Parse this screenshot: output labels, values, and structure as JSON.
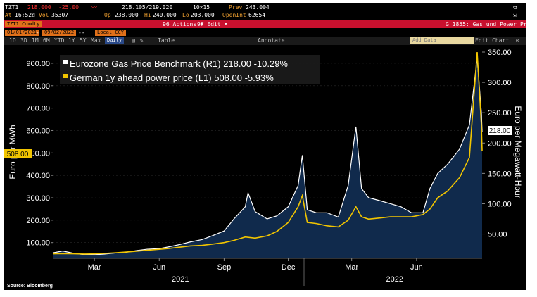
{
  "quote": {
    "ticker": "TZT1",
    "last": "218.000",
    "change": "-25.00",
    "bid_ask": "218.105/219.020",
    "size": "10×15",
    "prev_label": "Prev",
    "prev": "243.004"
  },
  "stats": {
    "time_label": "At",
    "time": "16:52d",
    "vol_label": "Vol",
    "vol": "35307",
    "op_label": "Op",
    "op": "238.000",
    "hi_label": "Hi",
    "hi": "240.000",
    "lo_label": "Lo",
    "lo": "203.000",
    "oi_label": "OpenInt",
    "oi": "62654"
  },
  "toolbar": {
    "security": "TZT1 Comdty",
    "actions": "96 Actions •",
    "edit": "97 Edit •",
    "page_title": "G 1855: Gas und Power Price"
  },
  "range": {
    "start": "01/01/2021",
    "sep": "-",
    "end": "09/02/2022",
    "dash": "--",
    "currency": "Local CCY"
  },
  "periods": [
    "1D",
    "3D",
    "1M",
    "6M",
    "YTD",
    "1Y",
    "5Y",
    "Max"
  ],
  "controls": {
    "frequency": "Daily",
    "table": "Table",
    "annotate": "Annotate",
    "add_data": "Add Data",
    "edit_chart": "Edit Chart"
  },
  "chart_data": {
    "type": "line",
    "legend": [
      "Eurozone Gas Price Benchmark (R1) 218.00 -10.29%",
      "German 1y ahead power price (L1)  508.00 -5.93%"
    ],
    "ylabel_left": "Euro per MWh",
    "ylabel_right": "Euro per Megawatt-Hour",
    "source": "Source: Bloomberg",
    "last_tags": {
      "power": "508.00",
      "gas": "218.00"
    },
    "ylim_left": [
      30,
      950
    ],
    "ylim_right": [
      10,
      350
    ],
    "left_ticks": [
      "100.00",
      "200.00",
      "300.00",
      "400.00",
      "500.00",
      "600.00",
      "700.00",
      "800.00",
      "900.00"
    ],
    "right_ticks": [
      "50.00",
      "100.00",
      "150.00",
      "200.00",
      "250.00",
      "300.00",
      "350.00"
    ],
    "x_tick_labels": [
      "Mar",
      "Jun",
      "Sep",
      "Dec",
      "Mar",
      "Jun"
    ],
    "year_labels": [
      "2021",
      "2022"
    ],
    "series": [
      {
        "name": "Eurozone Gas Price Benchmark (R1)",
        "axis": "right",
        "color": "#ffffff",
        "fill": "#102a4c",
        "points": [
          [
            "2021-01-01",
            19
          ],
          [
            "2021-01-15",
            22
          ],
          [
            "2021-02-01",
            18
          ],
          [
            "2021-02-15",
            16
          ],
          [
            "2021-03-01",
            16
          ],
          [
            "2021-03-15",
            17
          ],
          [
            "2021-04-01",
            19
          ],
          [
            "2021-04-15",
            20
          ],
          [
            "2021-05-01",
            23
          ],
          [
            "2021-05-15",
            25
          ],
          [
            "2021-06-01",
            26
          ],
          [
            "2021-06-15",
            29
          ],
          [
            "2021-07-01",
            33
          ],
          [
            "2021-07-15",
            37
          ],
          [
            "2021-08-01",
            41
          ],
          [
            "2021-08-15",
            47
          ],
          [
            "2021-09-01",
            55
          ],
          [
            "2021-09-15",
            75
          ],
          [
            "2021-10-01",
            95
          ],
          [
            "2021-10-05",
            118
          ],
          [
            "2021-10-15",
            87
          ],
          [
            "2021-11-01",
            75
          ],
          [
            "2021-11-15",
            80
          ],
          [
            "2021-12-01",
            95
          ],
          [
            "2021-12-15",
            130
          ],
          [
            "2021-12-21",
            180
          ],
          [
            "2021-12-28",
            90
          ],
          [
            "2022-01-10",
            85
          ],
          [
            "2022-01-25",
            85
          ],
          [
            "2022-02-10",
            78
          ],
          [
            "2022-02-24",
            130
          ],
          [
            "2022-03-07",
            227
          ],
          [
            "2022-03-15",
            125
          ],
          [
            "2022-03-25",
            110
          ],
          [
            "2022-04-10",
            105
          ],
          [
            "2022-04-25",
            100
          ],
          [
            "2022-05-10",
            95
          ],
          [
            "2022-05-25",
            85
          ],
          [
            "2022-06-10",
            85
          ],
          [
            "2022-06-20",
            125
          ],
          [
            "2022-07-01",
            150
          ],
          [
            "2022-07-15",
            165
          ],
          [
            "2022-08-01",
            190
          ],
          [
            "2022-08-15",
            230
          ],
          [
            "2022-08-26",
            340
          ],
          [
            "2022-09-01",
            250
          ],
          [
            "2022-09-02",
            218
          ]
        ]
      },
      {
        "name": "German 1y ahead power price (L1)",
        "axis": "left",
        "color": "#f2c500",
        "points": [
          [
            "2021-01-01",
            50
          ],
          [
            "2021-01-15",
            51
          ],
          [
            "2021-02-01",
            50
          ],
          [
            "2021-02-15",
            49
          ],
          [
            "2021-03-01",
            50
          ],
          [
            "2021-03-15",
            52
          ],
          [
            "2021-04-01",
            55
          ],
          [
            "2021-04-15",
            58
          ],
          [
            "2021-05-01",
            62
          ],
          [
            "2021-05-15",
            66
          ],
          [
            "2021-06-01",
            70
          ],
          [
            "2021-06-15",
            74
          ],
          [
            "2021-07-01",
            80
          ],
          [
            "2021-07-15",
            85
          ],
          [
            "2021-08-01",
            88
          ],
          [
            "2021-08-15",
            93
          ],
          [
            "2021-09-01",
            100
          ],
          [
            "2021-09-15",
            110
          ],
          [
            "2021-10-01",
            125
          ],
          [
            "2021-10-15",
            120
          ],
          [
            "2021-11-01",
            130
          ],
          [
            "2021-11-15",
            150
          ],
          [
            "2021-12-01",
            190
          ],
          [
            "2021-12-15",
            260
          ],
          [
            "2021-12-21",
            310
          ],
          [
            "2021-12-28",
            190
          ],
          [
            "2022-01-10",
            185
          ],
          [
            "2022-01-25",
            175
          ],
          [
            "2022-02-10",
            170
          ],
          [
            "2022-02-24",
            200
          ],
          [
            "2022-03-07",
            260
          ],
          [
            "2022-03-15",
            215
          ],
          [
            "2022-03-25",
            205
          ],
          [
            "2022-04-10",
            210
          ],
          [
            "2022-04-25",
            215
          ],
          [
            "2022-05-10",
            215
          ],
          [
            "2022-05-25",
            215
          ],
          [
            "2022-06-10",
            225
          ],
          [
            "2022-06-20",
            250
          ],
          [
            "2022-07-01",
            300
          ],
          [
            "2022-07-15",
            330
          ],
          [
            "2022-08-01",
            390
          ],
          [
            "2022-08-15",
            480
          ],
          [
            "2022-08-26",
            950
          ],
          [
            "2022-09-01",
            620
          ],
          [
            "2022-09-02",
            508
          ]
        ]
      }
    ]
  }
}
